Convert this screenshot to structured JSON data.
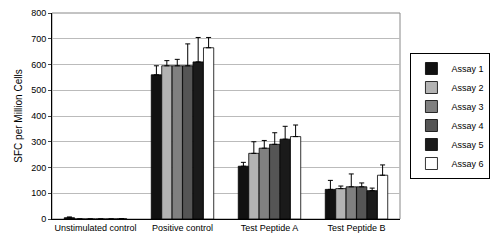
{
  "chart_data": {
    "type": "bar",
    "y_label": "SFC per Million Cells",
    "categories": [
      "Unstimulated control",
      "Positive control",
      "Test Peptide A",
      "Test Peptide B"
    ],
    "series": [
      {
        "name": "Assay 1",
        "color": "#111111",
        "values": [
          5,
          560,
          205,
          115
        ],
        "errors": [
          3,
          35,
          15,
          35
        ]
      },
      {
        "name": "Assay 2",
        "color": "#b3b3b3",
        "values": [
          0,
          595,
          255,
          118
        ],
        "errors": [
          0,
          20,
          45,
          10
        ]
      },
      {
        "name": "Assay 3",
        "color": "#808080",
        "values": [
          0,
          595,
          275,
          125
        ],
        "errors": [
          0,
          25,
          30,
          50
        ]
      },
      {
        "name": "Assay 4",
        "color": "#555555",
        "values": [
          0,
          595,
          290,
          125
        ],
        "errors": [
          0,
          85,
          45,
          15
        ]
      },
      {
        "name": "Assay 5",
        "color": "#1a1a1a",
        "values": [
          0,
          610,
          310,
          110
        ],
        "errors": [
          0,
          95,
          50,
          10
        ]
      },
      {
        "name": "Assay 6",
        "color": "#ffffff",
        "values": [
          1,
          665,
          320,
          170
        ],
        "errors": [
          0,
          40,
          45,
          40
        ]
      }
    ],
    "ylim": [
      0,
      800
    ],
    "yticks": [
      0,
      100,
      200,
      300,
      400,
      500,
      600,
      700,
      800
    ],
    "grid": true,
    "legend": "right"
  }
}
